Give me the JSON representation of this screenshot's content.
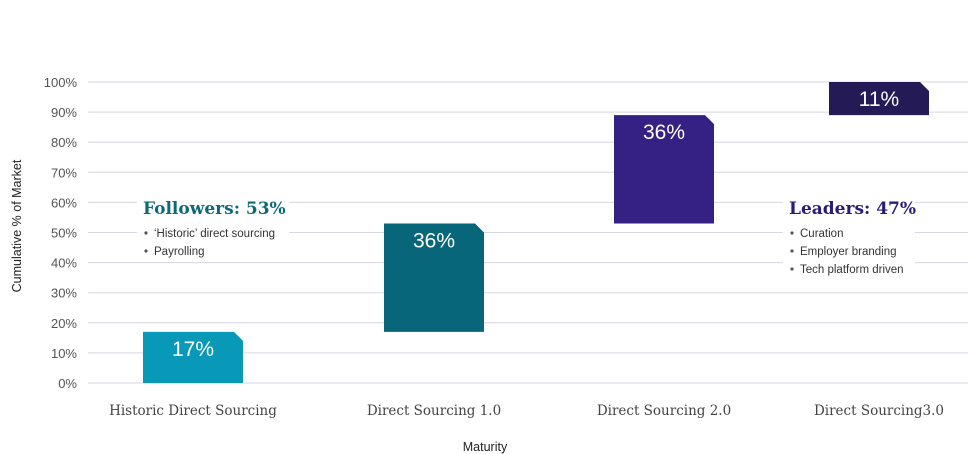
{
  "chart_data": {
    "type": "bar",
    "subtype": "waterfall",
    "xlabel": "Maturity",
    "ylabel": "Cumulative % of Market",
    "ylim": [
      0,
      100
    ],
    "yticks": [
      "0%",
      "10%",
      "20%",
      "30%",
      "40%",
      "50%",
      "60%",
      "70%",
      "80%",
      "90%",
      "100%"
    ],
    "categories": [
      "Historic Direct Sourcing",
      "Direct Sourcing 1.0",
      "Direct Sourcing 2.0",
      "Direct Sourcing3.0"
    ],
    "bars": [
      {
        "start": 0,
        "end": 17,
        "label": "17%",
        "color": "#0899b8"
      },
      {
        "start": 17,
        "end": 53,
        "label": "36%",
        "color": "#08667a"
      },
      {
        "start": 53,
        "end": 89,
        "label": "36%",
        "color": "#352184"
      },
      {
        "start": 89,
        "end": 100,
        "label": "11%",
        "color": "#241a56"
      }
    ],
    "grid": true,
    "annotations": [
      {
        "title": "Followers: 53%",
        "color": "#0c6a78",
        "bullets": [
          "‘Historic’ direct sourcing",
          "Payrolling"
        ]
      },
      {
        "title": "Leaders: 47%",
        "color": "#2b1a78",
        "bullets": [
          "Curation",
          "Employer branding",
          "Tech platform driven"
        ]
      }
    ]
  }
}
